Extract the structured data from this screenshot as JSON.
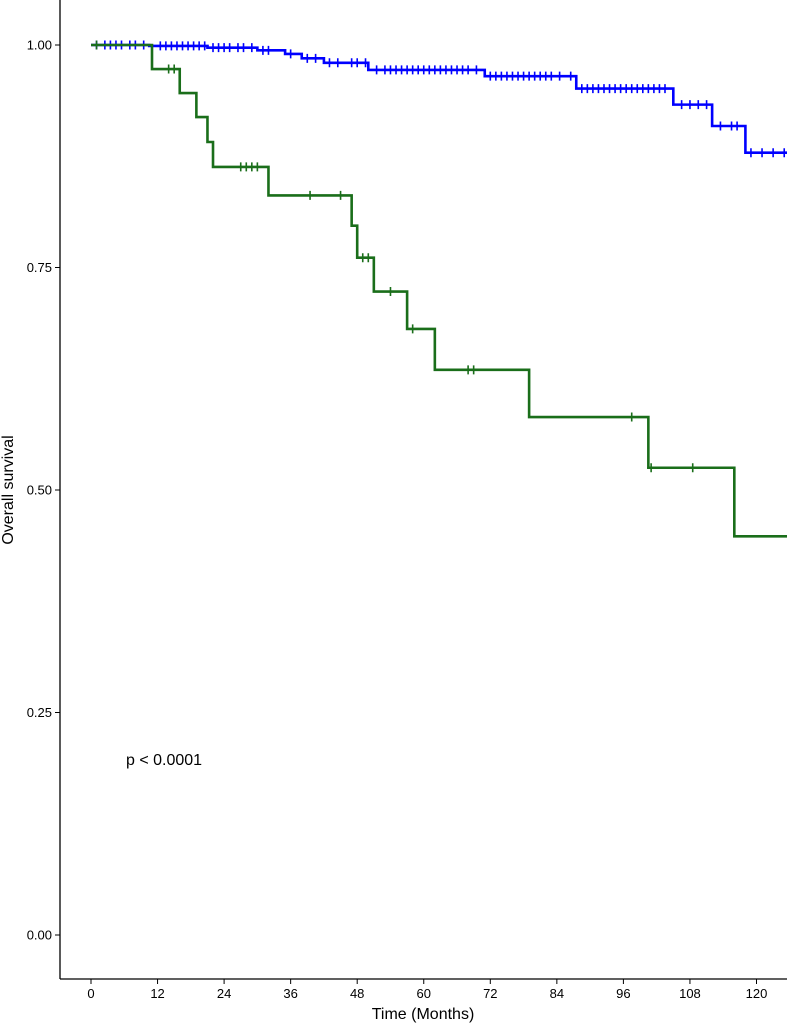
{
  "chart_data": {
    "type": "line",
    "title": "",
    "xlabel": "Time (Months)",
    "ylabel": "Overall survival",
    "xlim": [
      -5.5,
      126
    ],
    "ylim": [
      -0.05,
      1.05
    ],
    "x_ticks": [
      0,
      12,
      24,
      36,
      48,
      60,
      72,
      84,
      96,
      108,
      120
    ],
    "y_ticks": [
      0.0,
      0.25,
      0.5,
      0.75,
      1.0
    ],
    "y_tick_labels": [
      "0.00",
      "0.25",
      "0.50",
      "0.75",
      "1.00"
    ],
    "grid": false,
    "legend": "none",
    "annotation": "p < 0.0001",
    "series": [
      {
        "color": "#0000ff",
        "steps": [
          [
            0,
            1.0
          ],
          [
            10.5,
            0.999
          ],
          [
            21,
            0.997
          ],
          [
            30,
            0.994
          ],
          [
            35,
            0.99
          ],
          [
            38,
            0.985
          ],
          [
            42,
            0.98
          ],
          [
            50,
            0.972
          ],
          [
            71,
            0.965
          ],
          [
            87.5,
            0.951
          ],
          [
            105,
            0.933
          ],
          [
            112,
            0.909
          ],
          [
            118,
            0.879
          ]
        ],
        "end": 126,
        "censors": [
          1,
          2.5,
          3.5,
          4.5,
          5.5,
          7,
          8,
          9.5,
          12.5,
          13.5,
          14.5,
          15.5,
          16.5,
          17.5,
          18.5,
          19.5,
          20.5,
          22,
          23,
          24,
          25,
          26.5,
          27.5,
          29,
          31,
          32,
          36,
          39,
          40.5,
          43,
          44.5,
          47,
          48,
          49.5,
          51.5,
          53,
          54,
          55,
          56,
          57,
          58,
          59,
          60,
          61,
          62,
          63,
          64,
          65,
          66,
          67,
          68,
          69.5,
          72,
          73,
          74,
          75,
          76,
          77,
          78,
          79,
          80,
          81,
          82,
          83,
          84.5,
          86.5,
          88.5,
          89.5,
          90.5,
          91.5,
          92.5,
          93.5,
          94.5,
          95.5,
          96.5,
          97.5,
          98.5,
          99.5,
          100.5,
          101.5,
          102.5,
          103.5,
          106.5,
          108,
          109.5,
          111,
          113.5,
          115.5,
          116.5,
          119,
          121,
          123,
          125
        ]
      },
      {
        "color": "#1a6e1a",
        "steps": [
          [
            0,
            1.0
          ],
          [
            11,
            0.973
          ],
          [
            16,
            0.946
          ],
          [
            19,
            0.919
          ],
          [
            21,
            0.891
          ],
          [
            22,
            0.863
          ],
          [
            32,
            0.831
          ],
          [
            47,
            0.797
          ],
          [
            48,
            0.761
          ],
          [
            51,
            0.723
          ],
          [
            57,
            0.681
          ],
          [
            62,
            0.635
          ],
          [
            79,
            0.582
          ],
          [
            100.5,
            0.525
          ],
          [
            116,
            0.448
          ]
        ],
        "end": 126,
        "censors": [
          1,
          14,
          15,
          27,
          28,
          29,
          30,
          39.5,
          45,
          49,
          50,
          54,
          58,
          68,
          69,
          97.5,
          101,
          108.5
        ]
      }
    ]
  }
}
